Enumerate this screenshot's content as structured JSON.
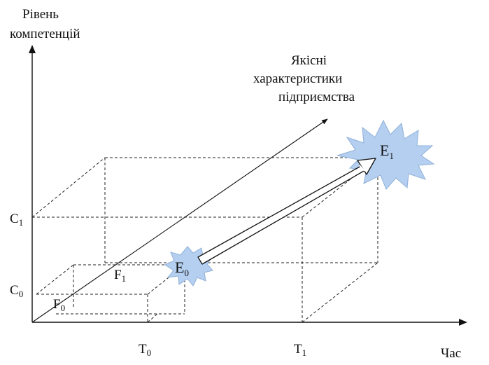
{
  "axes": {
    "y_label_line1": "Рівень",
    "y_label_line2": "компетенцій",
    "x_label": "Час",
    "diag_label_line1": "Якісні",
    "diag_label_line2": "характеристики",
    "diag_label_line3": "підприємства"
  },
  "ticks": {
    "c1": {
      "main": "C",
      "sub": "1"
    },
    "c0": {
      "main": "C",
      "sub": "0"
    },
    "t0": {
      "main": "T",
      "sub": "0"
    },
    "t1": {
      "main": "T",
      "sub": "1"
    }
  },
  "regions": {
    "f1": {
      "main": "F",
      "sub": "1"
    },
    "f0": {
      "main": "F",
      "sub": "0"
    }
  },
  "states": {
    "e0": {
      "main": "E",
      "sub": "0"
    },
    "e1": {
      "main": "E",
      "sub": "1"
    }
  },
  "colors": {
    "burst_fill": "#b4cff0",
    "burst_stroke": "#8fb0d8",
    "line": "#111111"
  }
}
